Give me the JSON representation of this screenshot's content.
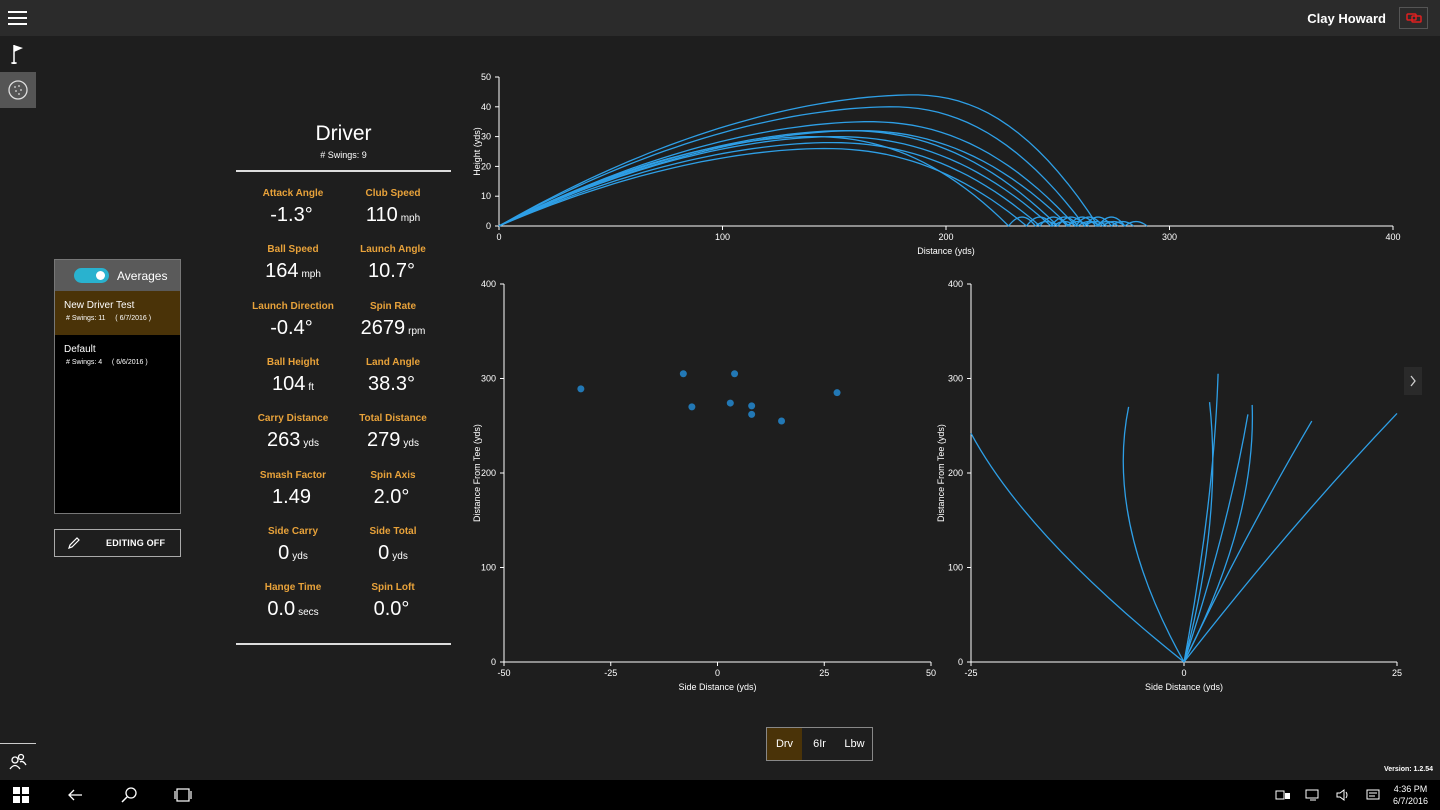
{
  "header": {
    "username": "Clay Howard"
  },
  "nav": {
    "icons": [
      "flag-icon",
      "golf-ball-icon",
      "users-icon"
    ]
  },
  "sessions": {
    "averages_label": "Averages",
    "averages_on": true,
    "items": [
      {
        "name": "New Driver Test",
        "swings": "# Swings: 11",
        "date": "( 6/7/2016 )",
        "active": true
      },
      {
        "name": "Default",
        "swings": "# Swings: 4",
        "date": "( 6/6/2016 )",
        "active": false
      }
    ]
  },
  "edit_button": {
    "label": "EDITING OFF"
  },
  "summary": {
    "club": "Driver",
    "swings": "# Swings: 9",
    "stats": [
      {
        "label": "Attack Angle",
        "value": "-1.3°",
        "unit": ""
      },
      {
        "label": "Club Speed",
        "value": "110",
        "unit": "mph"
      },
      {
        "label": "Ball Speed",
        "value": "164",
        "unit": "mph"
      },
      {
        "label": "Launch Angle",
        "value": "10.7°",
        "unit": ""
      },
      {
        "label": "Launch Direction",
        "value": "-0.4°",
        "unit": ""
      },
      {
        "label": "Spin Rate",
        "value": "2679",
        "unit": "rpm"
      },
      {
        "label": "Ball Height",
        "value": "104",
        "unit": "ft"
      },
      {
        "label": "Land Angle",
        "value": "38.3°",
        "unit": ""
      },
      {
        "label": "Carry Distance",
        "value": "263",
        "unit": "yds"
      },
      {
        "label": "Total Distance",
        "value": "279",
        "unit": "yds"
      },
      {
        "label": "Smash Factor",
        "value": "1.49",
        "unit": ""
      },
      {
        "label": "Spin Axis",
        "value": "2.0°",
        "unit": ""
      },
      {
        "label": "Side Carry",
        "value": "0",
        "unit": "yds"
      },
      {
        "label": "Side Total",
        "value": "0",
        "unit": "yds"
      },
      {
        "label": "Hange Time",
        "value": "0.0",
        "unit": "secs"
      },
      {
        "label": "Spin Loft",
        "value": "0.0°",
        "unit": ""
      }
    ]
  },
  "chart_data": [
    {
      "type": "line",
      "xlabel": "Distance (yds)",
      "ylabel": "Height (yds)",
      "xlim": [
        0,
        400
      ],
      "ylim": [
        0,
        50
      ],
      "xticks": [
        0,
        100,
        200,
        300,
        400
      ],
      "yticks": [
        0,
        10,
        20,
        30,
        40,
        50
      ],
      "color": "#2e9fe6",
      "series": [
        {
          "carry": 268,
          "apex": 44,
          "apex_x": 185
        },
        {
          "carry": 262,
          "apex": 40,
          "apex_x": 175
        },
        {
          "carry": 258,
          "apex": 35,
          "apex_x": 165
        },
        {
          "carry": 255,
          "apex": 32,
          "apex_x": 160
        },
        {
          "carry": 250,
          "apex": 32,
          "apex_x": 155
        },
        {
          "carry": 247,
          "apex": 30,
          "apex_x": 150
        },
        {
          "carry": 242,
          "apex": 28,
          "apex_x": 148
        },
        {
          "carry": 236,
          "apex": 26,
          "apex_x": 145
        },
        {
          "carry": 228,
          "apex": 30,
          "apex_x": 140
        }
      ]
    },
    {
      "type": "scatter",
      "xlabel": "Side Distance (yds)",
      "ylabel": "Distance From Tee (yds)",
      "xlim": [
        -50,
        50
      ],
      "ylim": [
        0,
        400
      ],
      "xticks": [
        -50,
        -25,
        0,
        25,
        50
      ],
      "yticks": [
        0,
        100,
        200,
        300,
        400
      ],
      "color": "#2278b5",
      "points": [
        {
          "x": -32,
          "y": 289
        },
        {
          "x": -8,
          "y": 305
        },
        {
          "x": -6,
          "y": 270
        },
        {
          "x": 3,
          "y": 274
        },
        {
          "x": 4,
          "y": 305
        },
        {
          "x": 8,
          "y": 271
        },
        {
          "x": 8,
          "y": 262
        },
        {
          "x": 15,
          "y": 255
        },
        {
          "x": 28,
          "y": 285
        }
      ]
    },
    {
      "type": "line",
      "xlabel": "Side Distance (yds)",
      "ylabel": "Distance From Tee (yds)",
      "xlim": [
        -25,
        25
      ],
      "ylim": [
        0,
        400
      ],
      "xticks": [
        -25,
        0,
        25
      ],
      "yticks": [
        0,
        100,
        200,
        300,
        400
      ],
      "color": "#2e9fe6",
      "series": [
        {
          "end_x": -25,
          "end_y": 242,
          "curve": -4
        },
        {
          "end_x": -6.5,
          "end_y": 270,
          "curve": -4
        },
        {
          "end_x": 4,
          "end_y": 305,
          "curve": 1
        },
        {
          "end_x": 3,
          "end_y": 275,
          "curve": 2
        },
        {
          "end_x": 8,
          "end_y": 272,
          "curve": 3
        },
        {
          "end_x": 7.5,
          "end_y": 262,
          "curve": 1
        },
        {
          "end_x": 15,
          "end_y": 255,
          "curve": 0
        },
        {
          "end_x": 25,
          "end_y": 263,
          "curve": 0
        }
      ]
    }
  ],
  "club_selector": {
    "items": [
      "Drv",
      "6Ir",
      "Lbw"
    ],
    "active": 0
  },
  "footer": {
    "version": "Version: 1.2.54"
  },
  "taskbar": {
    "time": "4:36 PM",
    "date": "6/7/2016"
  }
}
